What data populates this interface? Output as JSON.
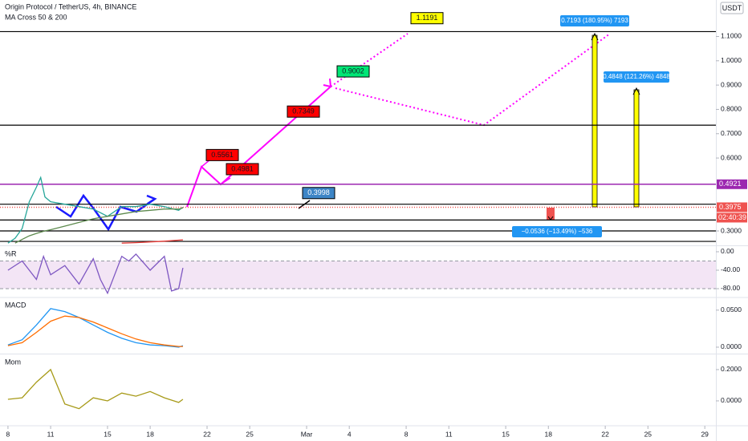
{
  "chart_data": [
    {
      "type": "line",
      "title": "Origin Protocol / TetherUS, 4h, BINANCE",
      "subtitle": "MA Cross 50 & 200",
      "currency": "USDT",
      "x": [
        8,
        8.5,
        9,
        9.5,
        10,
        10.3,
        10.6,
        11,
        12,
        13,
        14,
        15,
        16,
        17,
        18,
        19,
        20,
        20.3
      ],
      "series": [
        {
          "color": "#26a69a",
          "values": [
            0.25,
            0.27,
            0.31,
            0.42,
            0.48,
            0.52,
            0.44,
            0.42,
            0.41,
            0.4,
            0.39,
            0.36,
            0.4,
            0.4,
            0.41,
            0.4,
            0.385,
            0.3975
          ]
        },
        {
          "color": "#5d8a4e",
          "values": [
            null,
            0.25,
            0.265,
            0.28,
            0.29,
            0.295,
            0.3,
            0.305,
            0.32,
            0.335,
            0.35,
            0.36,
            0.37,
            0.38,
            0.385,
            0.39,
            0.39,
            0.395
          ]
        },
        {
          "color": "#e53935",
          "values": [
            null,
            null,
            null,
            null,
            null,
            null,
            null,
            null,
            null,
            null,
            null,
            null,
            0.25,
            0.252,
            0.255,
            0.258,
            0.262,
            0.263
          ]
        }
      ],
      "levels": [
        {
          "value": 1.12,
          "color": "#000000"
        },
        {
          "value": 0.735,
          "color": "#000000"
        },
        {
          "value": 0.4921,
          "color": "#9c27b0"
        },
        {
          "value": 0.41,
          "color": "#000000"
        },
        {
          "value": 0.3975,
          "color": "#ef5350"
        },
        {
          "value": 0.345,
          "color": "#000000"
        },
        {
          "value": 0.3,
          "color": "#000000"
        },
        {
          "value": 0.257,
          "color": "#000000"
        }
      ],
      "annotations": [
        {
          "value": 1.1191,
          "color": "#ffff00"
        },
        {
          "value": 0.9002,
          "color": "#00e676"
        },
        {
          "value": 0.7349,
          "color": "#ff0000"
        },
        {
          "value": 0.5561,
          "color": "#ff0000"
        },
        {
          "value": 0.4981,
          "color": "#ff0000"
        },
        {
          "value": 0.3998,
          "color": "#3d85c6"
        }
      ],
      "measurements": [
        "0.7193 (180.95%) 7193",
        "0.4848 (121.26%) 4848",
        "−0.0536 (−13.49%) −536"
      ],
      "countdown": "02:40:39",
      "xlim": [
        7.44,
        57.78
      ],
      "ylim": [
        0.244,
        1.25
      ],
      "yticks": [
        {
          "value": 1.1,
          "label": "1.1000"
        },
        {
          "value": 1.0,
          "label": "1.0000"
        },
        {
          "value": 0.9,
          "label": "0.9000"
        },
        {
          "value": 0.8,
          "label": "0.8000"
        },
        {
          "value": 0.7,
          "label": "0.7000"
        },
        {
          "value": 0.6,
          "label": "0.6000"
        },
        {
          "value": 0.3,
          "label": "0.3000"
        }
      ]
    },
    {
      "type": "line",
      "title": "%R",
      "x": [
        8,
        9,
        10,
        10.5,
        11,
        12,
        13,
        14,
        14.5,
        15,
        16,
        16.5,
        17,
        18,
        19,
        19.5,
        20,
        20.3
      ],
      "series": [
        {
          "color": "#7e57c2",
          "values": [
            -40,
            -20,
            -60,
            -10,
            -50,
            -30,
            -70,
            -15,
            -60,
            -90,
            -10,
            -20,
            -5,
            -40,
            -10,
            -85,
            -80,
            -35
          ]
        }
      ],
      "band": [
        -20,
        -80
      ],
      "xlim": [
        7.44,
        57.78
      ],
      "ylim": [
        -97.4,
        10.4
      ],
      "yticks": [
        {
          "value": 0,
          "label": "0.00"
        },
        {
          "value": -40,
          "label": "-40.00"
        },
        {
          "value": -80,
          "label": "-80.00"
        }
      ]
    },
    {
      "type": "line",
      "title": "MACD",
      "x": [
        8,
        9,
        10,
        11,
        12,
        13,
        14,
        15,
        16,
        17,
        18,
        19,
        20,
        20.3
      ],
      "series": [
        {
          "color": "#2196f3",
          "values": [
            0.003,
            0.01,
            0.03,
            0.052,
            0.048,
            0.04,
            0.03,
            0.02,
            0.012,
            0.006,
            0.003,
            0.002,
            0,
            0.002
          ]
        },
        {
          "color": "#ff6d00",
          "values": [
            0.002,
            0.006,
            0.02,
            0.035,
            0.042,
            0.04,
            0.034,
            0.026,
            0.018,
            0.011,
            0.006,
            0.003,
            0.001,
            0.001
          ]
        }
      ],
      "xlim": [
        7.44,
        57.78
      ],
      "ylim": [
        -0.0076,
        0.066
      ],
      "yticks": [
        {
          "value": 0.05,
          "label": "0.0500"
        },
        {
          "value": 0,
          "label": "0.0000"
        }
      ]
    },
    {
      "type": "line",
      "title": "Mom",
      "x": [
        8,
        9,
        10,
        11,
        12,
        13,
        14,
        15,
        16,
        17,
        18,
        19,
        20,
        20.3
      ],
      "series": [
        {
          "color": "#a79a18",
          "values": [
            0.01,
            0.02,
            0.12,
            0.2,
            -0.02,
            -0.05,
            0.02,
            0.0,
            0.05,
            0.03,
            0.06,
            0.02,
            -0.01,
            0.01
          ]
        }
      ],
      "xlim": [
        7.44,
        57.78
      ],
      "ylim": [
        -0.154,
        0.292
      ],
      "yticks": [
        {
          "value": 0.2,
          "label": "0.2000"
        },
        {
          "value": 0,
          "label": "0.0000"
        }
      ],
      "xticks": [
        8,
        11,
        15,
        18,
        22,
        25,
        {
          "value": 29,
          "label": "Mar"
        },
        {
          "value": 32,
          "label": "4"
        },
        {
          "value": 36,
          "label": "8"
        },
        {
          "value": 39,
          "label": "11"
        },
        {
          "value": 43,
          "label": "15"
        },
        {
          "value": 46,
          "label": "18"
        },
        {
          "value": 50,
          "label": "22"
        },
        {
          "value": 53,
          "label": "25"
        },
        {
          "value": 57,
          "label": "29"
        }
      ]
    }
  ]
}
